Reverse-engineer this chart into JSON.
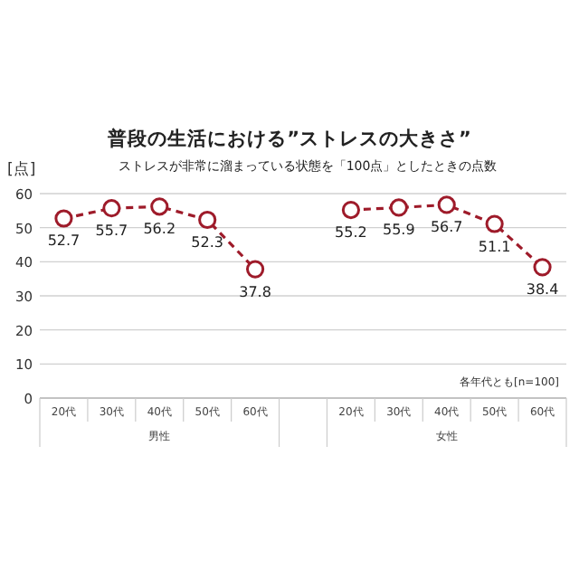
{
  "chart_data": {
    "type": "line",
    "title": "普段の生活における”ストレスの大きさ”",
    "subtitle": "ストレスが非常に溜まっている状態を「100点」としたときの点数",
    "ylabel": "[点]",
    "categories": [
      "20代",
      "30代",
      "40代",
      "50代",
      "60代",
      null,
      "20代",
      "30代",
      "40代",
      "50代",
      "60代"
    ],
    "series": [
      {
        "color": "#9e1b2a",
        "values": [
          52.7,
          55.7,
          56.2,
          52.3,
          37.8,
          null,
          55.2,
          55.9,
          56.7,
          51.1,
          38.4
        ]
      }
    ],
    "ylim": [
      0,
      60
    ],
    "yticks": [
      0,
      10,
      20,
      30,
      40,
      50,
      60
    ],
    "grid": "y",
    "marker": "circle",
    "line_style": "dashed",
    "data_labels": true,
    "annotations": [
      "各年代とも[n=100]",
      "男性",
      "女性"
    ]
  }
}
